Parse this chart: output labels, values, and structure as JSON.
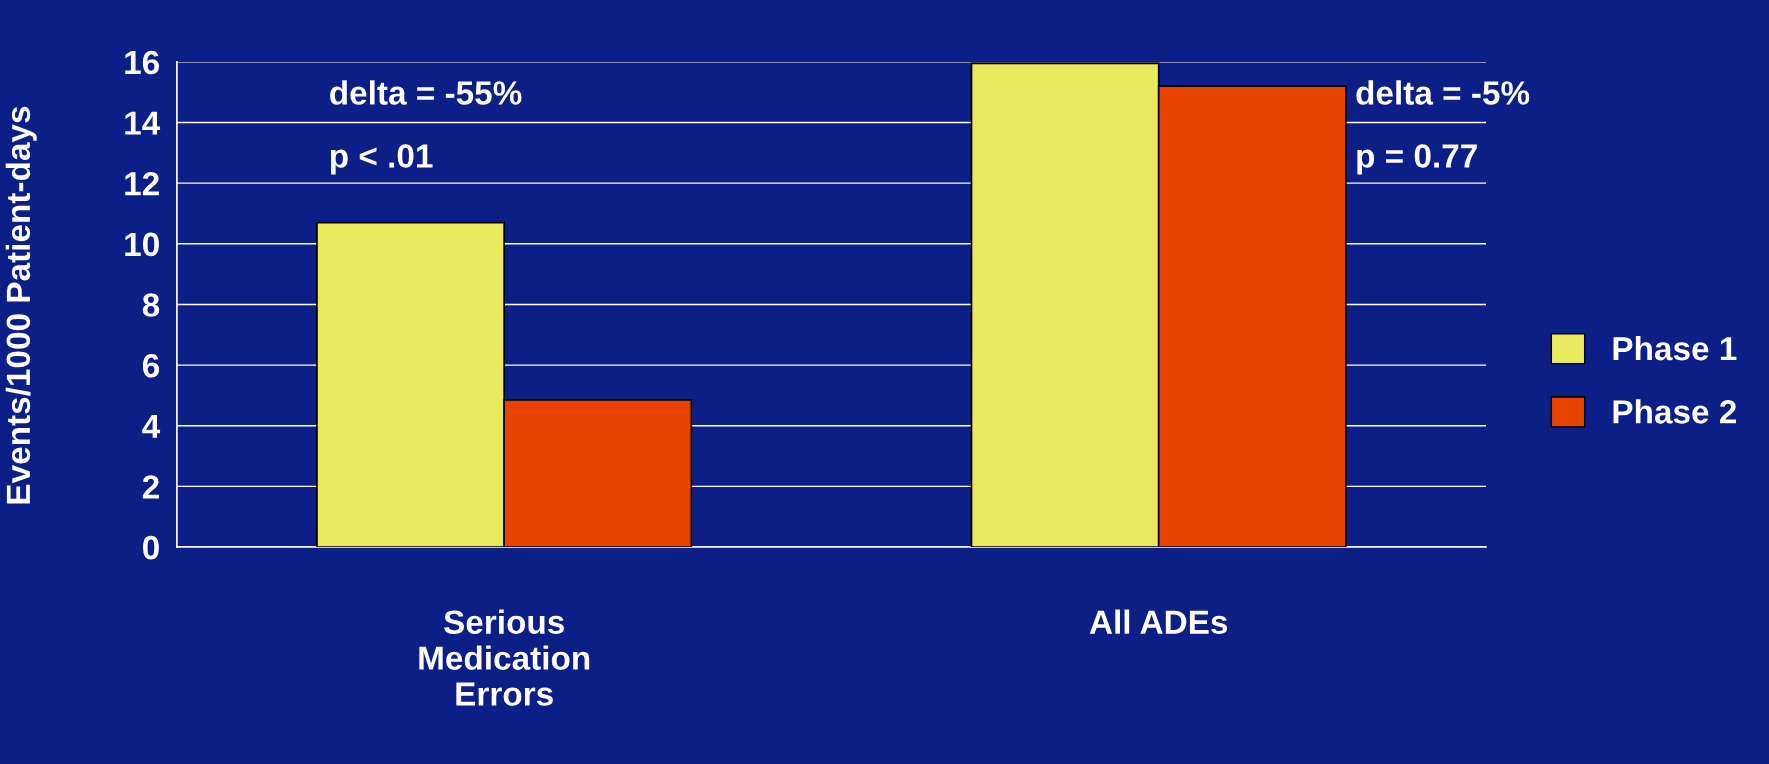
{
  "chart_data": {
    "type": "bar",
    "ylabel": "Events/1000 Patient-days",
    "categories": [
      "Serious\nMedication\nErrors",
      "All ADEs"
    ],
    "series": [
      {
        "name": "Phase 1",
        "color": "#eaea5e",
        "values": [
          10.7,
          15.95
        ]
      },
      {
        "name": "Phase 2",
        "color": "#e84300",
        "values": [
          4.85,
          15.2
        ]
      }
    ],
    "ylim": [
      0,
      16
    ],
    "yticks": [
      0,
      2,
      4,
      6,
      8,
      10,
      12,
      14,
      16
    ],
    "grid": "y",
    "legend": "right",
    "annotations": [
      "delta = -55%",
      "p < .01",
      "delta = -5%",
      "p = 0.77"
    ]
  }
}
